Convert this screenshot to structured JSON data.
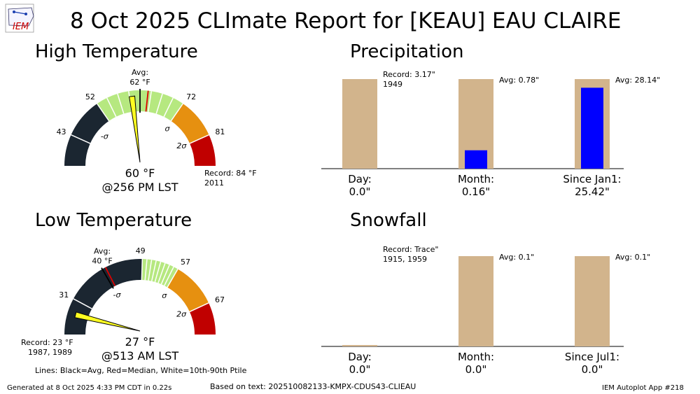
{
  "logo": "IEM",
  "title": "8 Oct 2025 CLImate Report for [KEAU] EAU CLAIRE",
  "colors": {
    "bar_bg": "#D2B48C",
    "bar_obs": "#0000FF",
    "dark": "#1B2631",
    "green": "#B6E880",
    "orange": "#E69010",
    "red": "#C00000"
  },
  "high": {
    "title": "High Temperature",
    "avg_label": "Avg:",
    "avg_value": "62",
    "ticks": [
      "43",
      "52",
      "72",
      "81"
    ],
    "sigma_labels": [
      "-σ",
      "σ",
      "2σ"
    ],
    "obs_value": "60",
    "obs_time": "@256 PM LST",
    "record_line1": "Record: 84",
    "record_line2": "2011"
  },
  "low": {
    "title": "Low Temperature",
    "avg_label": "Avg:",
    "avg_value": "40",
    "ticks": [
      "31",
      "49",
      "57",
      "67"
    ],
    "sigma_labels": [
      "-σ",
      "σ",
      "2σ"
    ],
    "obs_value": "27",
    "obs_time": "@513 AM LST",
    "record_line1": "Record: 23",
    "record_line2": "1987, 1989"
  },
  "lines_note": "Lines: Black=Avg, Red=Median, White=10th-90th Ptile",
  "degree_unit": "°F",
  "chart_data": [
    {
      "type": "gauge",
      "title": "High Temperature",
      "unit": "°F",
      "range": [
        36,
        88
      ],
      "ticks": [
        43,
        52,
        72,
        81
      ],
      "avg": 62,
      "median": 63,
      "observed": 60,
      "obs_time": "@256 PM LST",
      "record": 84,
      "record_year": "2011"
    },
    {
      "type": "gauge",
      "title": "Low Temperature",
      "unit": "°F",
      "range": [
        23,
        74
      ],
      "ticks": [
        31,
        49,
        57,
        67
      ],
      "avg": 40,
      "median": 40,
      "observed": 27,
      "obs_time": "@513 AM LST",
      "record": 23,
      "record_year": "1987, 1989"
    },
    {
      "type": "bar",
      "title": "Precipitation",
      "categories": [
        "Day:",
        "Month:",
        "Since Jan1:"
      ],
      "observed": [
        0.0,
        0.16,
        25.42
      ],
      "observed_labels": [
        "0.0\"",
        "0.16\"",
        "25.42\""
      ],
      "average": [
        null,
        0.78,
        28.14
      ],
      "average_labels": [
        "",
        "Avg: 0.78\"",
        "Avg: 28.14\""
      ],
      "record_label": "Record: 3.17\"",
      "record_year": "1949"
    },
    {
      "type": "bar",
      "title": "Snowfall",
      "categories": [
        "Day:",
        "Month:",
        "Since Jul1:"
      ],
      "observed": [
        0.0,
        0.0,
        0.0
      ],
      "observed_labels": [
        "0.0\"",
        "0.0\"",
        "0.0\""
      ],
      "average": [
        null,
        0.1,
        0.1
      ],
      "average_labels": [
        "",
        "Avg: 0.1\"",
        "Avg: 0.1\""
      ],
      "record_label": "Record: Trace\"",
      "record_year": "1915, 1959"
    }
  ],
  "footer": {
    "generated": "Generated at 8 Oct 2025 4:33 PM CDT in 0.22s",
    "based_on": "Based on text: 202510082133-KMPX-CDUS43-CLIEAU",
    "app": "IEM Autoplot App #218"
  }
}
